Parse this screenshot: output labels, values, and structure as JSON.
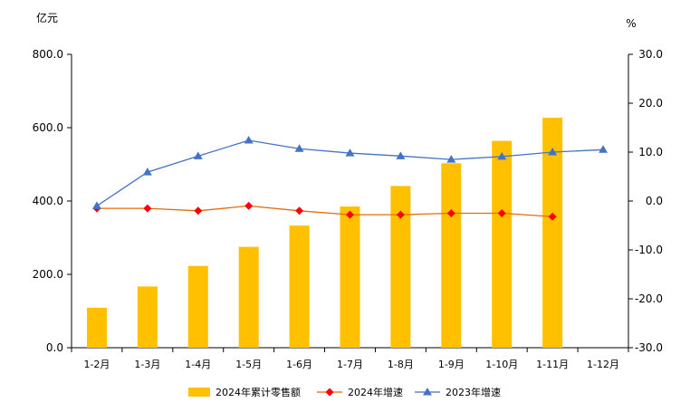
{
  "chart_data": {
    "type": "bar",
    "categories": [
      "1-2月",
      "1-3月",
      "1-4月",
      "1-5月",
      "1-6月",
      "1-7月",
      "1-8月",
      "1-9月",
      "1-10月",
      "1-11月",
      "1-12月"
    ],
    "y_left": {
      "unit": "亿元",
      "ylim": [
        0,
        800
      ],
      "ticks": [
        "0.0",
        "200.0",
        "400.0",
        "600.0",
        "800.0"
      ]
    },
    "y_right": {
      "unit": "%",
      "ylim": [
        -30,
        30
      ],
      "ticks": [
        "-30.0",
        "-20.0",
        "-10.0",
        "0.0",
        "10.0",
        "20.0",
        "30.0"
      ]
    },
    "series": [
      {
        "name": "2024年累计零售额",
        "kind": "bar",
        "axis": "left",
        "color": "#FFC000",
        "values": [
          109,
          167,
          223,
          275,
          333,
          385,
          441,
          503,
          564,
          627,
          null
        ]
      },
      {
        "name": "2024年增速",
        "kind": "line",
        "axis": "right",
        "color": "#E46C0A",
        "marker": "diamond",
        "marker_color": "#FF0000",
        "values": [
          -1.5,
          -1.5,
          -2.0,
          -1.0,
          -2.0,
          -2.8,
          -2.8,
          -2.5,
          -2.5,
          -3.2,
          null
        ]
      },
      {
        "name": "2023年增速",
        "kind": "line",
        "axis": "right",
        "color": "#4472C4",
        "marker": "triangle",
        "marker_color": "#4472C4",
        "values": [
          -1.0,
          5.9,
          9.2,
          12.4,
          10.7,
          9.8,
          9.2,
          8.5,
          9.1,
          10.0,
          10.5
        ]
      }
    ],
    "legend_position": "bottom",
    "grid": false
  }
}
